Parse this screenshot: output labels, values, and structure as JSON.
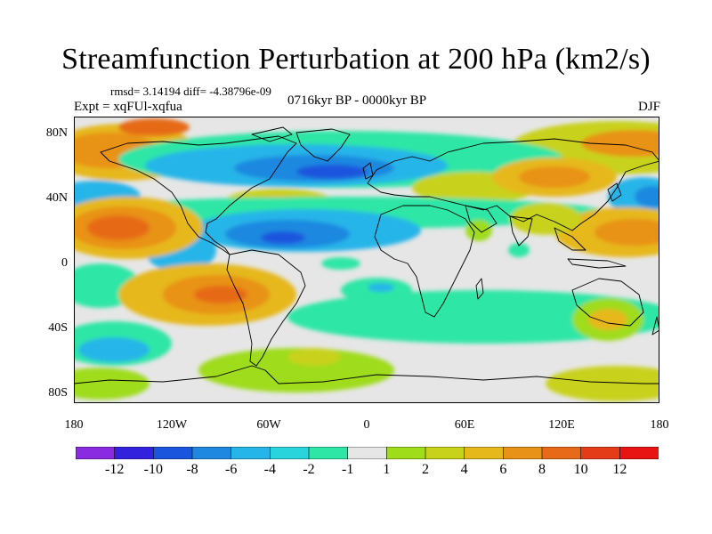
{
  "header": {
    "title": "Streamfunction Perturbation at 200 hPa (km2/s)",
    "rmsd_line": "rmsd= 3.14194 diff= -4.38796e-09",
    "experiment": "Expt = xqFUl-xqfua",
    "period": "0716kyr BP - 0000kyr BP",
    "season": "DJF"
  },
  "axes": {
    "lat_labels": [
      "80N",
      "40N",
      "0",
      "40S",
      "80S"
    ],
    "lon_labels": [
      "180",
      "120W",
      "60W",
      "0",
      "60E",
      "120E",
      "180"
    ]
  },
  "colorbar": {
    "labels": [
      "-12",
      "-10",
      "-8",
      "-6",
      "-4",
      "-2",
      "-1",
      "1",
      "2",
      "4",
      "6",
      "8",
      "10",
      "12"
    ],
    "colors": [
      "#8a2be2",
      "#3322dd",
      "#1a55dd",
      "#1e88e0",
      "#25b5e8",
      "#2ad4dc",
      "#2ee6a6",
      "#e6e6e6",
      "#9fdc1a",
      "#c8d21a",
      "#e6b81a",
      "#e89218",
      "#e66a18",
      "#e43c18",
      "#e81414"
    ]
  }
}
